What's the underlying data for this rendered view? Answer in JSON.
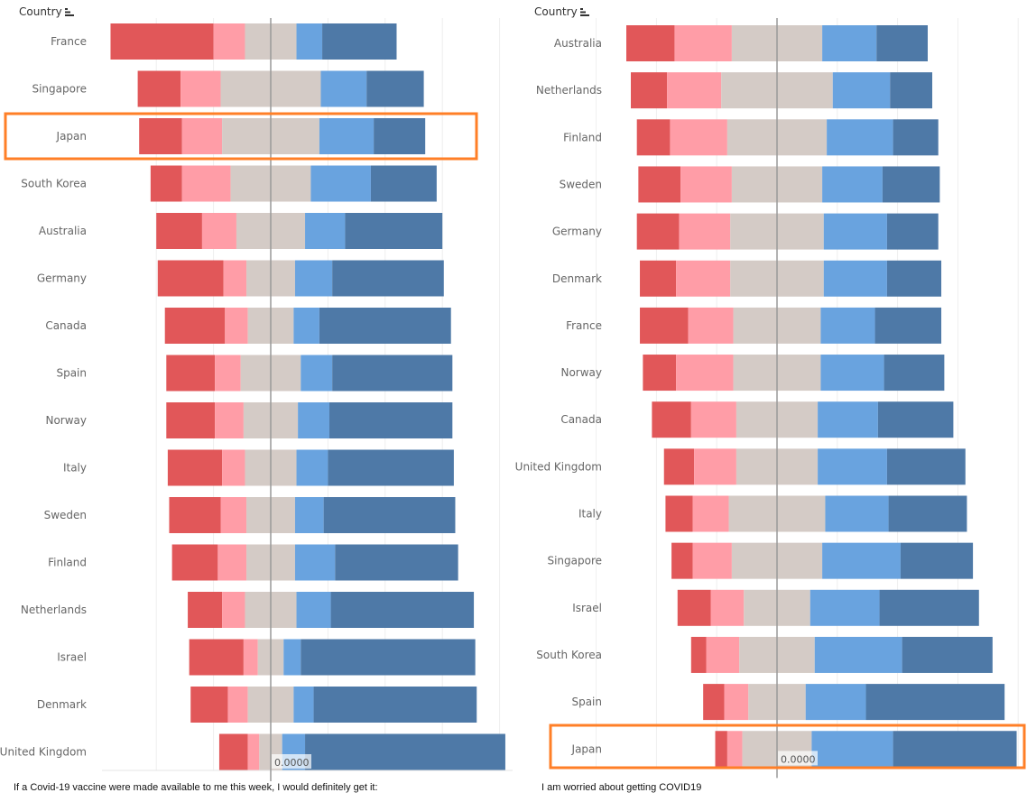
{
  "colors": {
    "strong_negative": "#e15759",
    "negative": "#ff9da7",
    "neutral": "#d4cbc6",
    "positive": "#69a3df",
    "strong_positive": "#4e79a7",
    "highlight": "#ff7f27",
    "center_line": "#999999",
    "grid": "#eeeeee"
  },
  "sort_icon": "sort-descending-icon",
  "chart_data": [
    {
      "type": "bar",
      "orientation": "horizontal-diverging-stacked",
      "header": "Country",
      "title": "If a Covid-19 vaccine were made available to me this week, I would definitely get it:",
      "center_label": "0.0000",
      "unit": "percent of respondents",
      "grid": true,
      "highlight": "Japan",
      "categories": [
        "France",
        "Singapore",
        "Japan",
        "South Korea",
        "Australia",
        "Germany",
        "Canada",
        "Spain",
        "Norway",
        "Italy",
        "Sweden",
        "Finland",
        "Netherlands",
        "Israel",
        "Denmark",
        "United Kingdom"
      ],
      "values": [
        [
          36,
          11,
          18,
          9,
          26
        ],
        [
          15,
          14,
          35,
          16,
          20
        ],
        [
          15,
          14,
          34,
          19,
          18
        ],
        [
          11,
          17,
          28,
          21,
          23
        ],
        [
          16,
          12,
          24,
          14,
          34
        ],
        [
          23,
          8,
          17,
          13,
          39
        ],
        [
          21,
          8,
          16,
          9,
          46
        ],
        [
          17,
          9,
          21,
          11,
          42
        ],
        [
          17,
          10,
          19,
          11,
          43
        ],
        [
          19,
          8,
          18,
          11,
          44
        ],
        [
          18,
          9,
          17,
          10,
          46
        ],
        [
          16,
          10,
          17,
          14,
          43
        ],
        [
          12,
          8,
          18,
          12,
          50
        ],
        [
          19,
          5,
          9,
          6,
          61
        ],
        [
          13,
          7,
          16,
          7,
          57
        ],
        [
          10,
          4,
          8,
          8,
          70
        ]
      ]
    },
    {
      "type": "bar",
      "orientation": "horizontal-diverging-stacked",
      "header": "Country",
      "title": "I am worried about getting COVID19",
      "center_label": "0.0000",
      "unit": "percent of respondents",
      "grid": true,
      "highlight": "Japan",
      "categories": [
        "Australia",
        "Netherlands",
        "Finland",
        "Sweden",
        "Germany",
        "Denmark",
        "France",
        "Norway",
        "Canada",
        "United Kingdom",
        "Italy",
        "Singapore",
        "Israel",
        "South Korea",
        "Spain",
        "Japan"
      ],
      "values": [
        [
          16,
          19,
          30,
          18,
          17
        ],
        [
          12,
          18,
          37,
          19,
          14
        ],
        [
          11,
          19,
          33,
          22,
          15
        ],
        [
          14,
          17,
          30,
          20,
          19
        ],
        [
          14,
          17,
          31,
          21,
          17
        ],
        [
          12,
          18,
          31,
          21,
          18
        ],
        [
          16,
          15,
          29,
          18,
          22
        ],
        [
          11,
          19,
          29,
          21,
          20
        ],
        [
          13,
          15,
          27,
          20,
          25
        ],
        [
          10,
          14,
          27,
          23,
          26
        ],
        [
          9,
          12,
          32,
          21,
          26
        ],
        [
          7,
          13,
          30,
          26,
          24
        ],
        [
          11,
          11,
          22,
          23,
          33
        ],
        [
          5,
          11,
          25,
          29,
          30
        ],
        [
          7,
          8,
          19,
          20,
          46
        ],
        [
          4,
          5,
          23,
          27,
          41
        ]
      ]
    }
  ]
}
